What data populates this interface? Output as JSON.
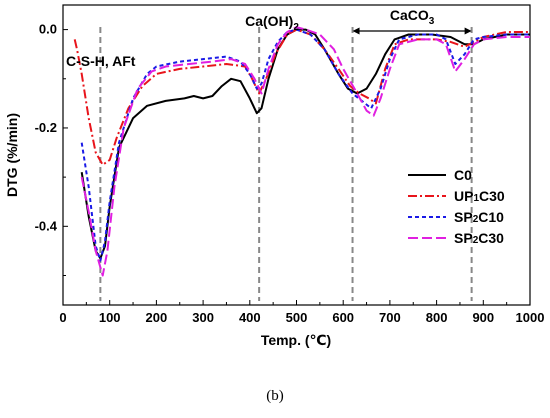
{
  "chart_data": {
    "type": "line",
    "xlabel": "Temp. (℃)",
    "ylabel": "DTG (%/min)",
    "xlim": [
      0,
      1000
    ],
    "ylim": [
      -0.56,
      0.05
    ],
    "xticks": [
      0,
      100,
      200,
      300,
      400,
      500,
      600,
      700,
      800,
      900,
      1000
    ],
    "yticks": [
      0.0,
      -0.2,
      -0.4
    ],
    "ytick_labels": [
      "0.0",
      "-0.2",
      "-0.4"
    ],
    "grid": false,
    "legend_position": "middle-right",
    "annotations": [
      {
        "text": "C-S-H, AFt",
        "x": 80
      },
      {
        "text": "Ca(OH)",
        "sub": "2",
        "x": 420
      },
      {
        "text": "CaCO",
        "sub": "3",
        "x_range": [
          620,
          875
        ]
      }
    ],
    "dashed_markers_x": [
      80,
      420,
      620,
      875
    ],
    "series": [
      {
        "name": "C0",
        "name_main": "C0",
        "name_sub": "",
        "name_tail": "",
        "color": "#000000",
        "dash": "solid",
        "points": [
          [
            40,
            -0.29
          ],
          [
            55,
            -0.38
          ],
          [
            70,
            -0.45
          ],
          [
            80,
            -0.465
          ],
          [
            90,
            -0.44
          ],
          [
            100,
            -0.36
          ],
          [
            120,
            -0.24
          ],
          [
            150,
            -0.18
          ],
          [
            180,
            -0.155
          ],
          [
            220,
            -0.145
          ],
          [
            260,
            -0.14
          ],
          [
            280,
            -0.135
          ],
          [
            300,
            -0.14
          ],
          [
            320,
            -0.135
          ],
          [
            340,
            -0.115
          ],
          [
            360,
            -0.1
          ],
          [
            380,
            -0.105
          ],
          [
            400,
            -0.14
          ],
          [
            415,
            -0.17
          ],
          [
            425,
            -0.16
          ],
          [
            440,
            -0.1
          ],
          [
            460,
            -0.04
          ],
          [
            480,
            -0.01
          ],
          [
            500,
            0.0
          ],
          [
            520,
            0.0
          ],
          [
            540,
            -0.01
          ],
          [
            560,
            -0.04
          ],
          [
            590,
            -0.09
          ],
          [
            610,
            -0.12
          ],
          [
            630,
            -0.13
          ],
          [
            650,
            -0.12
          ],
          [
            670,
            -0.09
          ],
          [
            690,
            -0.05
          ],
          [
            710,
            -0.02
          ],
          [
            740,
            -0.01
          ],
          [
            790,
            -0.01
          ],
          [
            830,
            -0.015
          ],
          [
            860,
            -0.03
          ],
          [
            880,
            -0.03
          ],
          [
            900,
            -0.02
          ],
          [
            950,
            -0.01
          ],
          [
            1000,
            -0.01
          ]
        ]
      },
      {
        "name": "UP1C30",
        "name_main": "UP",
        "name_sub": "1",
        "name_tail": "C30",
        "color": "#e8141b",
        "dash": "dashdot",
        "points": [
          [
            25,
            -0.02
          ],
          [
            30,
            -0.04
          ],
          [
            40,
            -0.09
          ],
          [
            55,
            -0.18
          ],
          [
            70,
            -0.25
          ],
          [
            85,
            -0.275
          ],
          [
            100,
            -0.265
          ],
          [
            115,
            -0.22
          ],
          [
            140,
            -0.16
          ],
          [
            170,
            -0.115
          ],
          [
            200,
            -0.09
          ],
          [
            250,
            -0.08
          ],
          [
            300,
            -0.075
          ],
          [
            350,
            -0.07
          ],
          [
            390,
            -0.075
          ],
          [
            405,
            -0.1
          ],
          [
            420,
            -0.13
          ],
          [
            435,
            -0.1
          ],
          [
            455,
            -0.05
          ],
          [
            480,
            -0.01
          ],
          [
            500,
            0.0
          ],
          [
            530,
            -0.01
          ],
          [
            560,
            -0.04
          ],
          [
            590,
            -0.08
          ],
          [
            615,
            -0.115
          ],
          [
            635,
            -0.13
          ],
          [
            655,
            -0.14
          ],
          [
            670,
            -0.15
          ],
          [
            690,
            -0.08
          ],
          [
            710,
            -0.03
          ],
          [
            740,
            -0.02
          ],
          [
            800,
            -0.02
          ],
          [
            830,
            -0.025
          ],
          [
            860,
            -0.035
          ],
          [
            880,
            -0.025
          ],
          [
            900,
            -0.015
          ],
          [
            950,
            -0.005
          ],
          [
            1000,
            -0.005
          ]
        ]
      },
      {
        "name": "SP2C10",
        "name_main": "SP",
        "name_sub": "2",
        "name_tail": "C10",
        "color": "#1a1ae6",
        "dash": "dash",
        "points": [
          [
            40,
            -0.23
          ],
          [
            55,
            -0.32
          ],
          [
            70,
            -0.44
          ],
          [
            80,
            -0.47
          ],
          [
            90,
            -0.43
          ],
          [
            100,
            -0.35
          ],
          [
            120,
            -0.23
          ],
          [
            150,
            -0.14
          ],
          [
            180,
            -0.09
          ],
          [
            200,
            -0.075
          ],
          [
            250,
            -0.065
          ],
          [
            300,
            -0.06
          ],
          [
            350,
            -0.055
          ],
          [
            380,
            -0.065
          ],
          [
            400,
            -0.09
          ],
          [
            415,
            -0.12
          ],
          [
            425,
            -0.11
          ],
          [
            440,
            -0.06
          ],
          [
            460,
            -0.025
          ],
          [
            480,
            -0.005
          ],
          [
            500,
            0.0
          ],
          [
            530,
            -0.01
          ],
          [
            560,
            -0.04
          ],
          [
            590,
            -0.09
          ],
          [
            620,
            -0.13
          ],
          [
            640,
            -0.145
          ],
          [
            660,
            -0.16
          ],
          [
            680,
            -0.12
          ],
          [
            700,
            -0.06
          ],
          [
            720,
            -0.02
          ],
          [
            760,
            -0.01
          ],
          [
            800,
            -0.01
          ],
          [
            820,
            -0.02
          ],
          [
            840,
            -0.07
          ],
          [
            860,
            -0.05
          ],
          [
            880,
            -0.02
          ],
          [
            900,
            -0.015
          ],
          [
            950,
            -0.01
          ],
          [
            1000,
            -0.01
          ]
        ]
      },
      {
        "name": "SP2C30",
        "name_main": "SP",
        "name_sub": "2",
        "name_tail": "C30",
        "color": "#e01fe0",
        "dash": "longdash",
        "points": [
          [
            40,
            -0.3
          ],
          [
            55,
            -0.37
          ],
          [
            70,
            -0.45
          ],
          [
            85,
            -0.5
          ],
          [
            95,
            -0.45
          ],
          [
            110,
            -0.32
          ],
          [
            130,
            -0.2
          ],
          [
            160,
            -0.12
          ],
          [
            190,
            -0.085
          ],
          [
            220,
            -0.075
          ],
          [
            270,
            -0.07
          ],
          [
            320,
            -0.065
          ],
          [
            360,
            -0.06
          ],
          [
            390,
            -0.07
          ],
          [
            410,
            -0.1
          ],
          [
            425,
            -0.13
          ],
          [
            440,
            -0.08
          ],
          [
            460,
            -0.03
          ],
          [
            480,
            -0.005
          ],
          [
            500,
            0.005
          ],
          [
            520,
            0.0
          ],
          [
            550,
            -0.01
          ],
          [
            580,
            -0.04
          ],
          [
            600,
            -0.08
          ],
          [
            630,
            -0.13
          ],
          [
            650,
            -0.165
          ],
          [
            665,
            -0.175
          ],
          [
            680,
            -0.14
          ],
          [
            700,
            -0.08
          ],
          [
            720,
            -0.03
          ],
          [
            760,
            -0.02
          ],
          [
            800,
            -0.02
          ],
          [
            820,
            -0.03
          ],
          [
            840,
            -0.085
          ],
          [
            860,
            -0.06
          ],
          [
            880,
            -0.03
          ],
          [
            900,
            -0.02
          ],
          [
            950,
            -0.015
          ],
          [
            1000,
            -0.015
          ]
        ]
      }
    ]
  },
  "caption": "(b)"
}
